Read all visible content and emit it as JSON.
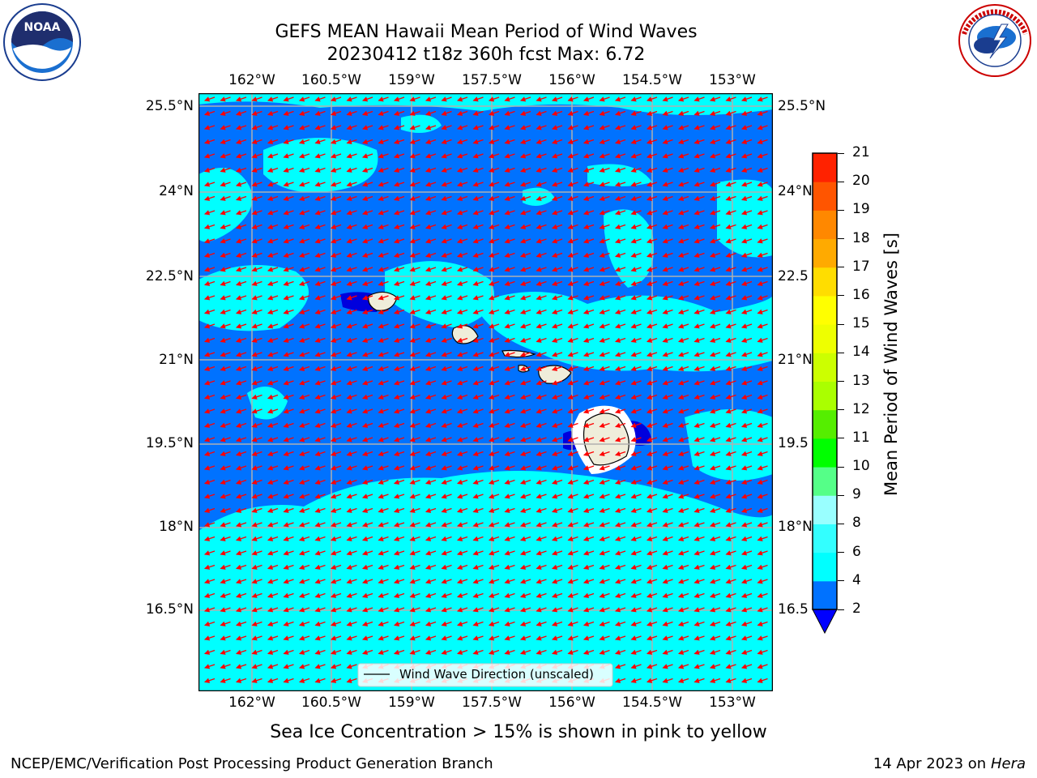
{
  "header": {
    "title_line1": "GEFS MEAN Hawaii Mean Period of Wind Waves",
    "title_line2": "20230412 t18z 360h fcst   Max: 6.72",
    "left_logo_text": "NOAA",
    "left_logo_ring": "NATIONAL OCEANIC AND ATMOSPHERIC ADMINISTRATION · U.S. DEPARTMENT OF COMMERCE",
    "right_logo_text": "NATIONAL WEATHER SERVICE"
  },
  "map": {
    "lon_labels": [
      "162°W",
      "160.5°W",
      "159°W",
      "157.5°W",
      "156°W",
      "154.5°W",
      "153°W"
    ],
    "lat_labels_left": [
      "25.5°N",
      "24°N",
      "22.5°N",
      "21°N",
      "19.5°N",
      "18°N",
      "16.5°N"
    ],
    "lat_labels_right": [
      "25.5°N",
      "24°N",
      "22.5",
      "21°N",
      "19.5",
      "18°N",
      "16.5"
    ],
    "legend_label": "Wind Wave Direction (unscaled)",
    "colors": {
      "ocean_dark": "#0072ff",
      "ocean_light": "#00ffff",
      "deep": "#0000dd",
      "land": "#efedda",
      "arrow": "#ff0000",
      "grid": "#b0b0b0"
    }
  },
  "colorbar": {
    "label": "Mean Period of Wind Waves [s]",
    "ticks": [
      "2",
      "4",
      "6",
      "8",
      "9",
      "10",
      "11",
      "12",
      "13",
      "14",
      "15",
      "16",
      "17",
      "18",
      "19",
      "20",
      "21"
    ],
    "colors": [
      "#0072ff",
      "#00ffff",
      "#33ffff",
      "#99ffff",
      "#55ff88",
      "#00ff00",
      "#55ee00",
      "#aaff00",
      "#ccff00",
      "#eeff00",
      "#ffff00",
      "#ffdd00",
      "#ffaa00",
      "#ff8800",
      "#ff5500",
      "#ff2200"
    ],
    "extend_color": "#0000ff"
  },
  "note": "Sea Ice Concentration > 15% is shown in pink to yellow",
  "footer": {
    "left": "NCEP/EMC/Verification Post Processing Product Generation Branch",
    "right_prefix": "14 Apr 2023 on ",
    "right_machine": "Hera"
  }
}
